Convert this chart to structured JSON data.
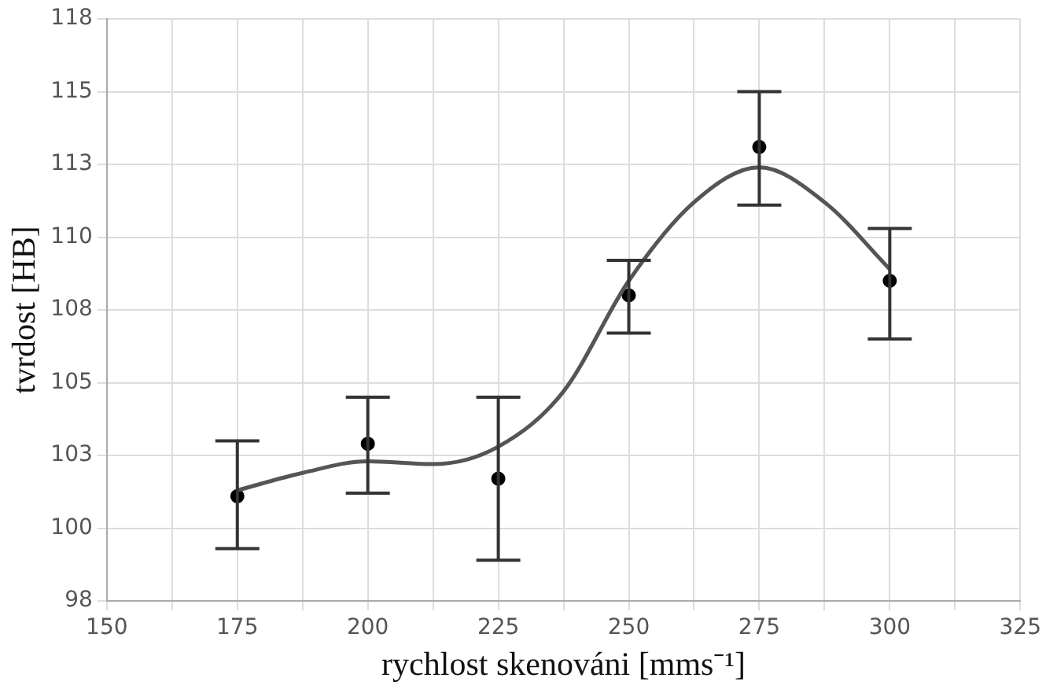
{
  "chart_data": {
    "type": "scatter",
    "xlabel": "rychlost skenováni [mms⁻¹]",
    "ylabel": "tvrdost [HB]",
    "x": [
      175,
      200,
      225,
      250,
      275,
      300
    ],
    "series": [
      {
        "type": "scatter",
        "color": "#000000",
        "values": [
          101.1,
          102.9,
          101.7,
          108.0,
          113.1,
          108.5
        ],
        "errors": [
          [
            99.3,
            103.0
          ],
          [
            101.2,
            104.5
          ],
          [
            98.9,
            104.5
          ],
          [
            106.7,
            109.2
          ],
          [
            111.1,
            115.0
          ],
          [
            106.5,
            110.3
          ]
        ]
      },
      {
        "type": "line",
        "color": "#555555",
        "marker": "none",
        "x": [
          175,
          187.5,
          200,
          212.5,
          225,
          237.5,
          250,
          262.5,
          275,
          287.5,
          300
        ],
        "values": [
          101.3,
          101.9,
          102.3,
          102.2,
          102.8,
          104.7,
          108.5,
          111.2,
          112.4,
          111.2,
          108.9
        ]
      }
    ],
    "xlim": [
      150,
      325
    ],
    "xticks": [
      150,
      {
        "value": 162.5,
        "label": null
      },
      175,
      {
        "value": 187.5,
        "label": null
      },
      200,
      {
        "value": 212.5,
        "label": null
      },
      225,
      {
        "value": 237.5,
        "label": null
      },
      250,
      {
        "value": 262.5,
        "label": null
      },
      275,
      {
        "value": 287.5,
        "label": null
      },
      300,
      {
        "value": 312.5,
        "label": null
      },
      325
    ],
    "ylim": [
      97.5,
      117.5
    ],
    "yticks": [
      {
        "value": 97.5,
        "label": "98"
      },
      100,
      {
        "value": 102.5,
        "label": "103"
      },
      105,
      {
        "value": 107.5,
        "label": "108"
      },
      110,
      {
        "value": 112.5,
        "label": "113"
      },
      115,
      {
        "value": 117.5,
        "label": "118"
      }
    ],
    "grid": true,
    "legend": false,
    "marker": "circle",
    "line_style": "solid"
  }
}
